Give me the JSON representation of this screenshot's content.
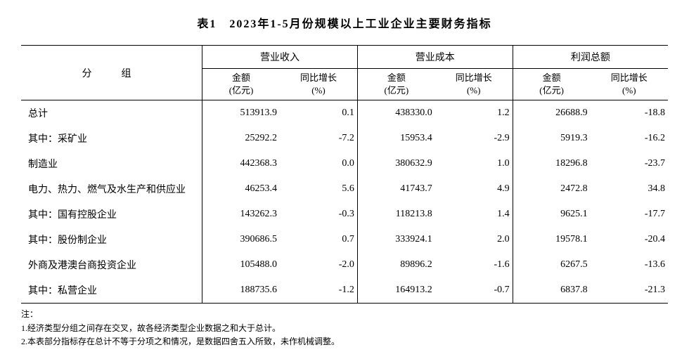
{
  "title": "表1　2023年1-5月份规模以上工业企业主要财务指标",
  "table": {
    "group_col_label": "分　组",
    "col_groups": [
      {
        "label": "营业收入",
        "sub1": "金额",
        "sub1_unit": "(亿元)",
        "sub2": "同比增长",
        "sub2_unit": "(%)"
      },
      {
        "label": "营业成本",
        "sub1": "金额",
        "sub1_unit": "(亿元)",
        "sub2": "同比增长",
        "sub2_unit": "(%)"
      },
      {
        "label": "利润总额",
        "sub1": "金额",
        "sub1_unit": "(亿元)",
        "sub2": "同比增长",
        "sub2_unit": "(%)"
      }
    ],
    "rows": [
      {
        "label": "总计",
        "indent": 0,
        "v": [
          "513913.9",
          "0.1",
          "438330.0",
          "1.2",
          "26688.9",
          "-18.8"
        ]
      },
      {
        "label": "其中：采矿业",
        "indent": 1,
        "v": [
          "25292.2",
          "-7.2",
          "15953.4",
          "-2.9",
          "5919.3",
          "-16.2"
        ]
      },
      {
        "label": "制造业",
        "indent": 2,
        "v": [
          "442368.3",
          "0.0",
          "380632.9",
          "1.0",
          "18296.8",
          "-23.7"
        ]
      },
      {
        "label": "电力、热力、燃气及水生产和供应业",
        "indent": 2,
        "v": [
          "46253.4",
          "5.6",
          "41743.7",
          "4.9",
          "2472.8",
          "34.8"
        ]
      },
      {
        "label": "其中：国有控股企业",
        "indent": 1,
        "v": [
          "143262.3",
          "-0.3",
          "118213.8",
          "1.4",
          "9625.1",
          "-17.7"
        ]
      },
      {
        "label": "其中：股份制企业",
        "indent": 1,
        "v": [
          "390686.5",
          "0.7",
          "333924.1",
          "2.0",
          "19578.1",
          "-20.4"
        ]
      },
      {
        "label": "外商及港澳台商投资企业",
        "indent": 2,
        "v": [
          "105488.0",
          "-2.0",
          "89896.2",
          "-1.6",
          "6267.5",
          "-13.6"
        ]
      },
      {
        "label": "其中：私营企业",
        "indent": 1,
        "v": [
          "188735.6",
          "-1.2",
          "164913.2",
          "-0.7",
          "6837.8",
          "-21.3"
        ]
      }
    ]
  },
  "notes": {
    "header": "注：",
    "lines": [
      "1.经济类型分组之间存在交叉，故各经济类型企业数据之和大于总计。",
      "2.本表部分指标存在总计不等于分项之和情况，是数据四舍五入所致，未作机械调整。"
    ]
  },
  "style": {
    "background": "#ffffff",
    "border_color": "#000000",
    "text_color": "#000000",
    "col_widths": {
      "label": "28%",
      "data": "12%"
    }
  }
}
